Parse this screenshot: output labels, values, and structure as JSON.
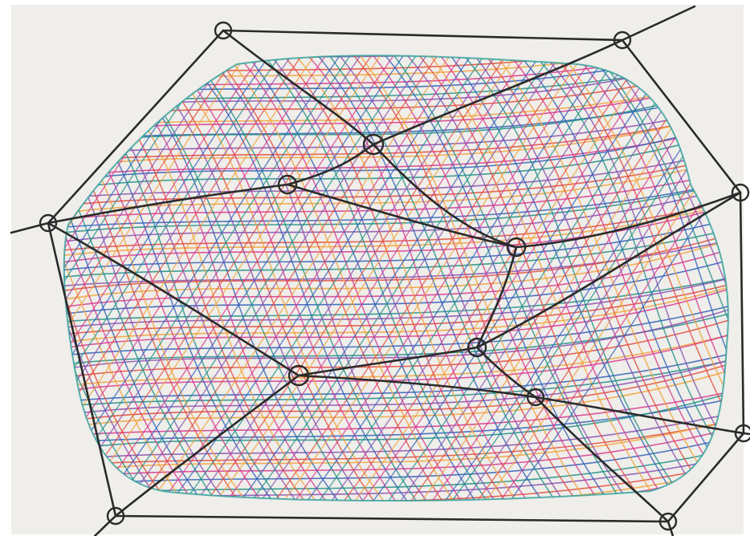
{
  "artwork": {
    "paper_color": "#efeeea",
    "ink_color": "#2a2a2a",
    "boundary_color": "#2f9e9a",
    "hatch_palette": [
      "#e24b3b",
      "#f2a23a",
      "#d8388f",
      "#2f5fb8",
      "#1f8f86",
      "#8a4fb0"
    ],
    "icon": "line-network-drawing"
  }
}
